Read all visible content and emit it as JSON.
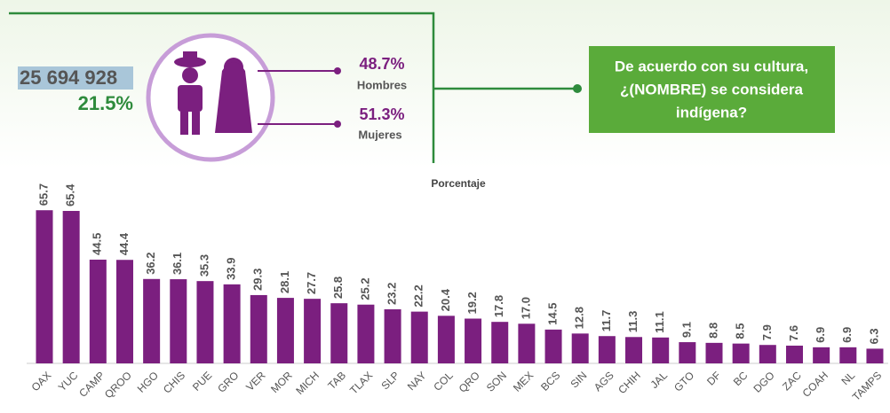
{
  "header": {
    "total": "25 694 928",
    "percent": "21.5%"
  },
  "men": {
    "percent": "48.7%",
    "label": "Hombres"
  },
  "women": {
    "percent": "51.3%",
    "label": "Mujeres"
  },
  "question": [
    "De acuerdo con su cultura,",
    "¿(NOMBRE) se considera",
    "indígena?"
  ],
  "chart_data": {
    "type": "bar",
    "axis_label": "Porcentaje",
    "color": "#7b1f7f",
    "categories": [
      "OAX",
      "YUC",
      "CAMP",
      "QROO",
      "HGO",
      "CHIS",
      "PUE",
      "GRO",
      "VER",
      "MOR",
      "MICH",
      "TAB",
      "TLAX",
      "SLP",
      "NAY",
      "COL",
      "QRO",
      "SON",
      "MEX",
      "BCS",
      "SIN",
      "AGS",
      "CHIH",
      "JAL",
      "GTO",
      "DF",
      "BC",
      "DGO",
      "ZAC",
      "COAH",
      "NL",
      "TAMPS"
    ],
    "values": [
      65.7,
      65.4,
      44.5,
      44.4,
      36.2,
      36.1,
      35.3,
      33.9,
      29.3,
      28.1,
      27.7,
      25.8,
      25.2,
      23.2,
      22.2,
      20.4,
      19.2,
      17.8,
      17.0,
      14.5,
      12.8,
      11.7,
      11.3,
      11.1,
      9.1,
      8.8,
      8.5,
      7.9,
      7.6,
      6.9,
      6.9,
      6.3
    ],
    "value_labels": [
      "65.7",
      "65.4",
      "44.5",
      "44.4",
      "36.2",
      "36.1",
      "35.3",
      "33.9",
      "29.3",
      "28.1",
      "27.7",
      "25.8",
      "25.2",
      "23.2",
      "22.2",
      "20.4",
      "19.2",
      "17.8",
      "17.0",
      "14.5",
      "12.8",
      "11.7",
      "11.3",
      "11.1",
      "9.1",
      "8.8",
      "8.5",
      "7.9",
      "7.6",
      "6.9",
      "6.9",
      "6.3"
    ]
  }
}
